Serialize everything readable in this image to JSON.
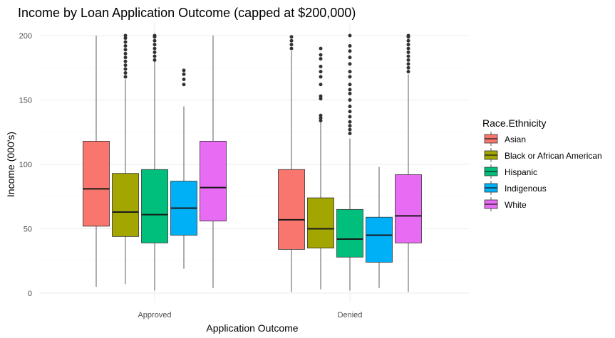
{
  "chart_data": {
    "type": "boxplot",
    "title": "Income by Loan Application Outcome (capped at $200,000)",
    "xlabel": "Application Outcome",
    "ylabel": "Income (000's)",
    "ylim": [
      0,
      200
    ],
    "yticks": [
      0,
      50,
      100,
      150,
      200
    ],
    "grid": true,
    "legend_position": "right",
    "legend_title": "Race.Ethnicity",
    "categories": [
      "Approved",
      "Denied"
    ],
    "series": [
      {
        "name": "Asian",
        "color": "#F8766D",
        "boxes": [
          {
            "min": 5,
            "q1": 52,
            "median": 81,
            "q3": 118,
            "max": 200,
            "outliers": []
          },
          {
            "min": 1,
            "q1": 34,
            "median": 57,
            "q3": 96,
            "max": 188,
            "outliers": [
              190,
              193,
              196,
              199
            ]
          }
        ]
      },
      {
        "name": "Black or African American",
        "color": "#A3A500",
        "boxes": [
          {
            "min": 7,
            "q1": 44,
            "median": 63,
            "q3": 93,
            "max": 166,
            "outliers": [
              168,
              171,
              174,
              177,
              180,
              183,
              186,
              189,
              192,
              195,
              198,
              200
            ]
          },
          {
            "min": 3,
            "q1": 35,
            "median": 50,
            "q3": 74,
            "max": 133,
            "outliers": [
              134,
              136,
              138,
              151,
              153,
              162,
              168,
              172,
              176,
              182,
              185,
              190
            ]
          }
        ]
      },
      {
        "name": "Hispanic",
        "color": "#00BF7D",
        "boxes": [
          {
            "min": 2,
            "q1": 39,
            "median": 61,
            "q3": 96,
            "max": 180,
            "outliers": [
              181,
              184,
              187,
              190,
              193,
              196,
              199,
              200
            ]
          },
          {
            "min": 2,
            "q1": 28,
            "median": 42,
            "q3": 65,
            "max": 120,
            "outliers": [
              124,
              127,
              130,
              133,
              137,
              141,
              145,
              150,
              155,
              158,
              162,
              168,
              172,
              178,
              183,
              188,
              192,
              200
            ]
          }
        ]
      },
      {
        "name": "Indigenous",
        "color": "#00B0F6",
        "boxes": [
          {
            "min": 19,
            "q1": 45,
            "median": 66,
            "q3": 87,
            "max": 145,
            "outliers": [
              162,
              166,
              170,
              173
            ]
          },
          {
            "min": 4,
            "q1": 24,
            "median": 45,
            "q3": 59,
            "max": 98,
            "outliers": []
          }
        ]
      },
      {
        "name": "White",
        "color": "#E76BF3",
        "boxes": [
          {
            "min": 4,
            "q1": 56,
            "median": 82,
            "q3": 118,
            "max": 200,
            "outliers": []
          },
          {
            "min": 1,
            "q1": 39,
            "median": 60,
            "q3": 92,
            "max": 170,
            "outliers": [
              172,
              175,
              178,
              181,
              184,
              187,
              190,
              193,
              196,
              199,
              200
            ]
          }
        ]
      }
    ]
  }
}
